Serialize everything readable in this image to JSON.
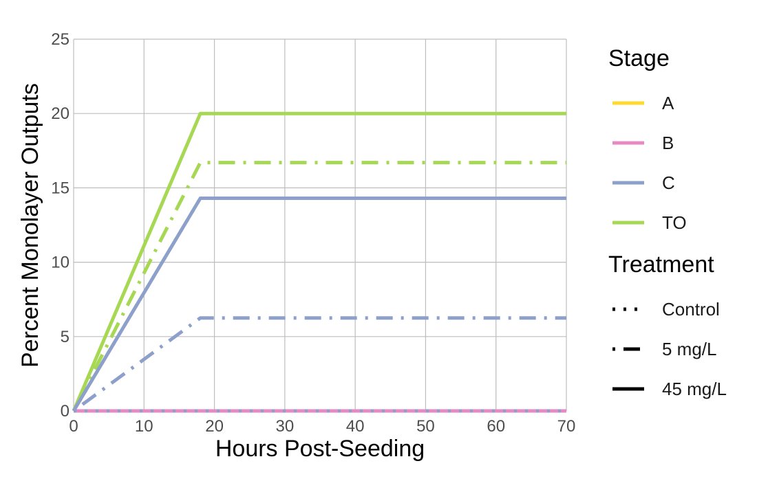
{
  "chart_data": {
    "type": "line",
    "title": "",
    "xlabel": "Hours Post-Seeding",
    "ylabel": "Percent Monolayer Outputs",
    "xlim": [
      0,
      70
    ],
    "ylim": [
      0,
      25
    ],
    "xticks": [
      0,
      10,
      20,
      30,
      40,
      50,
      60,
      70
    ],
    "yticks": [
      0,
      5,
      10,
      15,
      20,
      25
    ],
    "grid": true,
    "legend_position": "right",
    "legends": {
      "stage": {
        "title": "Stage",
        "items": [
          {
            "label": "A",
            "color": "#FFD92F"
          },
          {
            "label": "B",
            "color": "#E78AC3"
          },
          {
            "label": "C",
            "color": "#8DA0CB"
          },
          {
            "label": "TO",
            "color": "#A6D854"
          }
        ]
      },
      "treatment": {
        "title": "Treatment",
        "items": [
          {
            "label": "Control",
            "linetype": "dotted"
          },
          {
            "label": "5 mg/L",
            "linetype": "dotdash"
          },
          {
            "label": "45 mg/L",
            "linetype": "solid"
          }
        ]
      }
    },
    "series": [
      {
        "stage": "A",
        "treatment": "Control",
        "color": "#FFD92F",
        "linetype": "dotted",
        "x": [
          0,
          18,
          70
        ],
        "y": [
          0,
          0,
          0
        ]
      },
      {
        "stage": "A",
        "treatment": "5 mg/L",
        "color": "#FFD92F",
        "linetype": "dotdash",
        "x": [
          0,
          18,
          70
        ],
        "y": [
          0,
          0,
          0
        ]
      },
      {
        "stage": "A",
        "treatment": "45 mg/L",
        "color": "#FFD92F",
        "linetype": "solid",
        "x": [
          0,
          18,
          70
        ],
        "y": [
          0,
          0,
          0
        ]
      },
      {
        "stage": "B",
        "treatment": "Control",
        "color": "#E78AC3",
        "linetype": "dotted",
        "x": [
          0,
          18,
          70
        ],
        "y": [
          0,
          0,
          0
        ]
      },
      {
        "stage": "B",
        "treatment": "5 mg/L",
        "color": "#E78AC3",
        "linetype": "dotdash",
        "x": [
          0,
          18,
          70
        ],
        "y": [
          0,
          0,
          0
        ]
      },
      {
        "stage": "B",
        "treatment": "45 mg/L",
        "color": "#E78AC3",
        "linetype": "solid",
        "x": [
          0,
          18,
          70
        ],
        "y": [
          0,
          0,
          0
        ]
      },
      {
        "stage": "TO",
        "treatment": "45 mg/L",
        "color": "#A6D854",
        "linetype": "solid",
        "x": [
          0,
          18,
          70
        ],
        "y": [
          0,
          20,
          20
        ]
      },
      {
        "stage": "TO",
        "treatment": "5 mg/L",
        "color": "#A6D854",
        "linetype": "dotdash",
        "x": [
          0,
          18,
          70
        ],
        "y": [
          0,
          16.7,
          16.7
        ]
      },
      {
        "stage": "TO",
        "treatment": "Control",
        "color": "#A6D854",
        "linetype": "dotted",
        "x": [
          0,
          18,
          70
        ],
        "y": [
          0,
          14.3,
          14.3
        ]
      },
      {
        "stage": "C",
        "treatment": "45 mg/L",
        "color": "#8DA0CB",
        "linetype": "solid",
        "x": [
          0,
          18,
          70
        ],
        "y": [
          0,
          14.3,
          14.3
        ]
      },
      {
        "stage": "C",
        "treatment": "5 mg/L",
        "color": "#8DA0CB",
        "linetype": "dotdash",
        "x": [
          0,
          18,
          70
        ],
        "y": [
          0,
          6.25,
          6.25
        ]
      },
      {
        "stage": "C",
        "treatment": "Control",
        "color": "#8DA0CB",
        "linetype": "dotted",
        "x": [
          0,
          18,
          70
        ],
        "y": [
          0,
          0,
          0
        ]
      }
    ]
  }
}
